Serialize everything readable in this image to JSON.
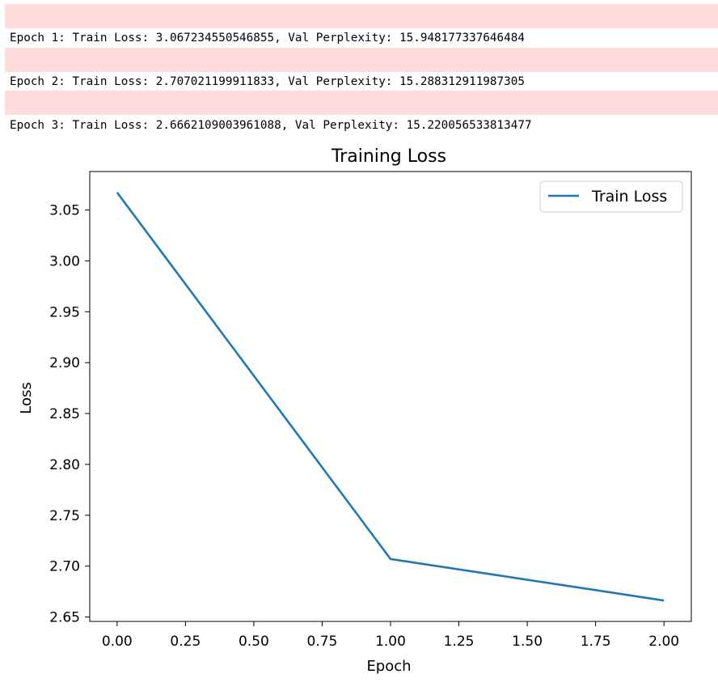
{
  "output": {
    "stderr_bars": 3,
    "lines": [
      "Epoch 1: Train Loss: 3.067234550546855, Val Perplexity: 15.948177337646484",
      "Epoch 2: Train Loss: 2.707021199911833, Val Perplexity: 15.288312911987305",
      "Epoch 3: Train Loss: 2.6662109003961088, Val Perplexity: 15.220056533813477"
    ]
  },
  "colors": {
    "stderr_background": "#ffdddd",
    "series_line": "#1f77b4",
    "axes": "#000000"
  },
  "chart_data": {
    "type": "line",
    "title": "Training Loss",
    "xlabel": "Epoch",
    "ylabel": "Loss",
    "xlim": [
      -0.1,
      2.1
    ],
    "ylim": [
      2.6457,
      3.0878
    ],
    "xticks": [
      0.0,
      0.25,
      0.5,
      0.75,
      1.0,
      1.25,
      1.5,
      1.75,
      2.0
    ],
    "xtick_labels": [
      "0.00",
      "0.25",
      "0.50",
      "0.75",
      "1.00",
      "1.25",
      "1.50",
      "1.75",
      "2.00"
    ],
    "yticks": [
      2.65,
      2.7,
      2.75,
      2.8,
      2.85,
      2.9,
      2.95,
      3.0,
      3.05
    ],
    "ytick_labels": [
      "2.65",
      "2.70",
      "2.75",
      "2.80",
      "2.85",
      "2.90",
      "2.95",
      "3.00",
      "3.05"
    ],
    "grid": false,
    "legend_position": "upper-right",
    "series": [
      {
        "name": "Train Loss",
        "x": [
          0,
          1,
          2
        ],
        "y": [
          3.067234550546855,
          2.707021199911833,
          2.6662109003961088
        ]
      }
    ]
  }
}
